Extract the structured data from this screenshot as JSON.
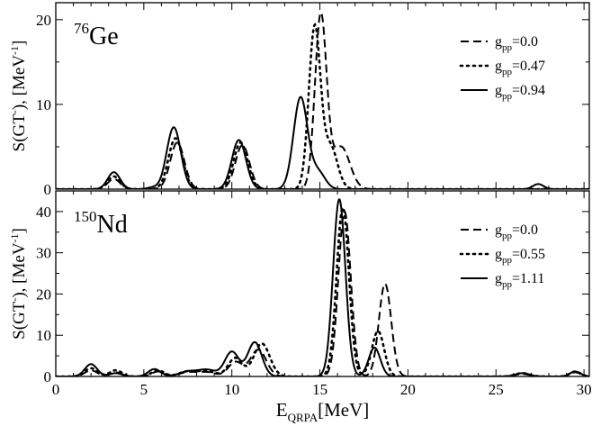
{
  "chart_data": [
    {
      "type": "line",
      "panel": "top",
      "nucleus": {
        "mass_number": "76",
        "symbol": "Ge"
      },
      "ylabel": "S(GT⁻), [MeV⁻¹]",
      "xlim": [
        0,
        30.3
      ],
      "ylim": [
        0,
        22
      ],
      "yticks": [
        0,
        10,
        20
      ],
      "legend_position": "top-right",
      "series": [
        {
          "name": "g_pp=0.0",
          "label_main": "g",
          "label_sub": "pp",
          "label_value": "=0.0",
          "dash": "dashed",
          "peaks": [
            [
              3.3,
              1.2,
              0.35
            ],
            [
              6.9,
              5.5,
              0.4
            ],
            [
              10.6,
              5.2,
              0.4
            ],
            [
              15.05,
              20.5,
              0.33
            ],
            [
              16.2,
              5.0,
              0.5
            ]
          ]
        },
        {
          "name": "g_pp=0.47",
          "label_main": "g",
          "label_sub": "pp",
          "label_value": "=0.47",
          "dash": "dotted",
          "peaks": [
            [
              3.3,
              1.5,
              0.35
            ],
            [
              6.8,
              6.0,
              0.4
            ],
            [
              10.5,
              5.5,
              0.4
            ],
            [
              14.7,
              19.0,
              0.33
            ],
            [
              15.6,
              5.0,
              0.4
            ]
          ]
        },
        {
          "name": "g_pp=0.94",
          "label_main": "g",
          "label_sub": "pp",
          "label_value": "=0.94",
          "dash": "solid",
          "peaks": [
            [
              3.3,
              2.0,
              0.35
            ],
            [
              5.5,
              0.2,
              0.3
            ],
            [
              6.7,
              7.3,
              0.4
            ],
            [
              10.4,
              5.8,
              0.4
            ],
            [
              13.9,
              10.8,
              0.4
            ],
            [
              14.9,
              2.0,
              0.4
            ],
            [
              27.4,
              0.6,
              0.3
            ]
          ]
        }
      ]
    },
    {
      "type": "line",
      "panel": "bottom",
      "nucleus": {
        "mass_number": "150",
        "symbol": "Nd"
      },
      "ylabel": "S(GT⁻), [MeV⁻¹]",
      "xlabel_main": "E",
      "xlabel_sub": "QRPA",
      "xlabel_rest": "[MeV]",
      "xlim": [
        0,
        30.3
      ],
      "ylim": [
        0,
        45
      ],
      "xticks": [
        0,
        5,
        10,
        15,
        20,
        25,
        30
      ],
      "yticks": [
        0,
        10,
        20,
        30,
        40
      ],
      "legend_position": "top-right",
      "series": [
        {
          "name": "g_pp=0.0",
          "label_main": "g",
          "label_sub": "pp",
          "label_value": "=0.0",
          "dash": "dashed",
          "peaks": [
            [
              2.0,
              1.5,
              0.35
            ],
            [
              3.4,
              1.0,
              0.35
            ],
            [
              5.8,
              1.2,
              0.35
            ],
            [
              7.5,
              1.0,
              0.5
            ],
            [
              8.6,
              1.0,
              0.5
            ],
            [
              10.2,
              3.5,
              0.4
            ],
            [
              11.5,
              6.5,
              0.45
            ],
            [
              16.4,
              40.0,
              0.35
            ],
            [
              18.7,
              22.5,
              0.35
            ],
            [
              26.5,
              0.6,
              0.4
            ],
            [
              29.5,
              1.0,
              0.3
            ]
          ]
        },
        {
          "name": "g_pp=0.55",
          "label_main": "g",
          "label_sub": "pp",
          "label_value": "=0.55",
          "dash": "dotted",
          "peaks": [
            [
              2.0,
              2.0,
              0.35
            ],
            [
              3.4,
              1.5,
              0.35
            ],
            [
              5.8,
              1.5,
              0.35
            ],
            [
              7.5,
              1.2,
              0.5
            ],
            [
              8.6,
              1.2,
              0.5
            ],
            [
              10.2,
              4.5,
              0.4
            ],
            [
              11.7,
              8.0,
              0.45
            ],
            [
              16.3,
              41.0,
              0.35
            ],
            [
              18.3,
              11.0,
              0.35
            ],
            [
              26.5,
              0.8,
              0.4
            ],
            [
              29.5,
              1.2,
              0.3
            ]
          ]
        },
        {
          "name": "g_pp=1.11",
          "label_main": "g",
          "label_sub": "pp",
          "label_value": "=1.11",
          "dash": "solid",
          "peaks": [
            [
              2.0,
              3.0,
              0.35
            ],
            [
              3.4,
              0.8,
              0.35
            ],
            [
              5.6,
              1.8,
              0.35
            ],
            [
              7.5,
              1.2,
              0.5
            ],
            [
              8.6,
              1.6,
              0.5
            ],
            [
              10.0,
              6.0,
              0.4
            ],
            [
              11.3,
              8.3,
              0.4
            ],
            [
              16.1,
              43.0,
              0.35
            ],
            [
              18.1,
              7.0,
              0.33
            ],
            [
              26.5,
              0.8,
              0.4
            ],
            [
              29.5,
              1.2,
              0.3
            ]
          ]
        }
      ]
    }
  ]
}
